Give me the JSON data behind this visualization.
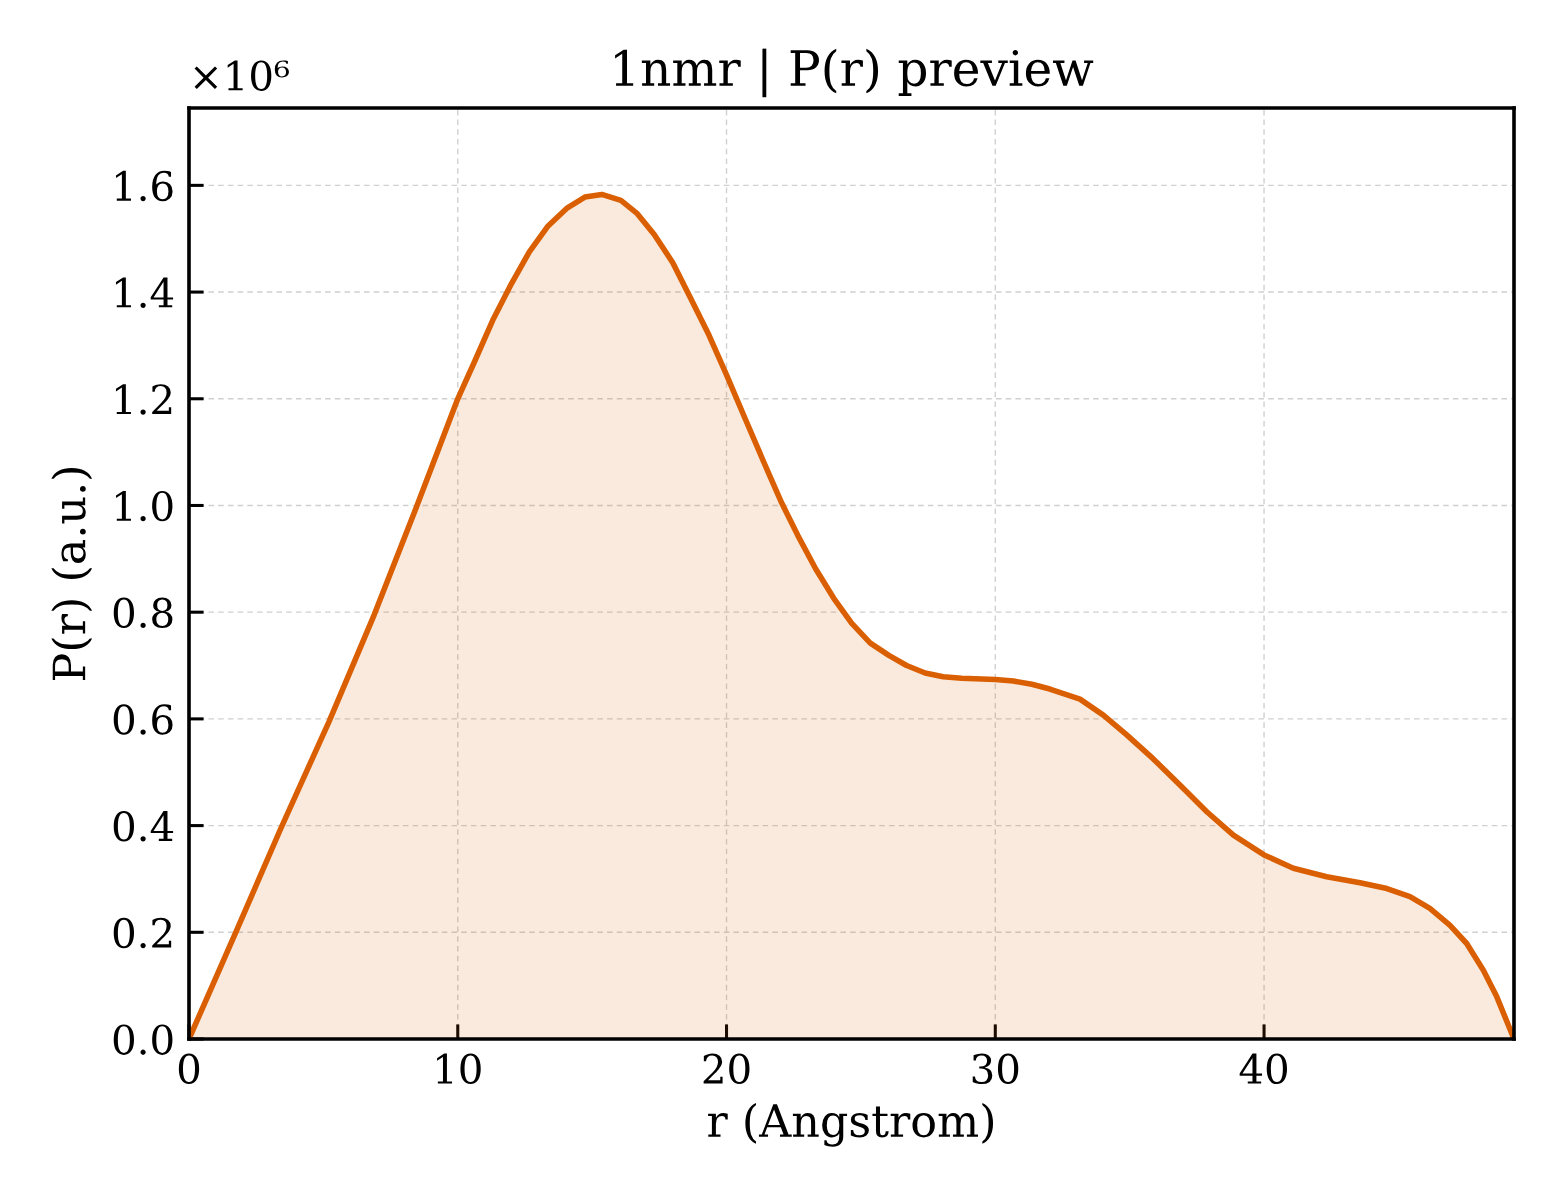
{
  "chart_data": {
    "type": "area",
    "title": "1nmr | P(r) preview",
    "xlabel": "r (Angstrom)",
    "ylabel": "P(r) (a.u.)",
    "annotations": [
      "×10⁶"
    ],
    "color": "#d95f02",
    "x": [
      0,
      1.74,
      3.42,
      5.21,
      6.89,
      8.47,
      10,
      10.61,
      11.3,
      12.0,
      12.67,
      13.36,
      14.08,
      14.73,
      15.36,
      16.07,
      16.68,
      17.31,
      18.0,
      18.66,
      19.35,
      20,
      20.69,
      21.38,
      22.05,
      22.65,
      23.32,
      23.99,
      24.66,
      25.35,
      26.04,
      26.7,
      27.39,
      28.06,
      28.75,
      30,
      30.67,
      31.36,
      32.03,
      33.15,
      34.02,
      34.89,
      35.88,
      36.87,
      37.87,
      38.86,
      40,
      41.09,
      42.33,
      43.57,
      44.57,
      45.43,
      46.17,
      46.92,
      47.54,
      48.16,
      48.66,
      49.3
    ],
    "values": [
      0,
      0.2,
      0.395,
      0.595,
      0.795,
      0.998,
      1.2,
      1.268,
      1.347,
      1.416,
      1.476,
      1.524,
      1.558,
      1.578,
      1.583,
      1.572,
      1.547,
      1.508,
      1.455,
      1.389,
      1.319,
      1.245,
      1.163,
      1.082,
      1.005,
      0.944,
      0.881,
      0.826,
      0.779,
      0.742,
      0.719,
      0.7,
      0.686,
      0.679,
      0.676,
      0.674,
      0.671,
      0.665,
      0.656,
      0.637,
      0.607,
      0.57,
      0.525,
      0.476,
      0.426,
      0.382,
      0.345,
      0.32,
      0.304,
      0.293,
      0.282,
      0.267,
      0.245,
      0.213,
      0.179,
      0.129,
      0.079,
      0
    ],
    "xlim": [
      0,
      49.3
    ],
    "xticks": [
      0,
      10,
      20,
      30,
      40
    ],
    "ylim": [
      0,
      1.745
    ],
    "yticks": [
      {
        "value": 0,
        "label": "0.0"
      },
      0.2,
      0.4,
      0.6,
      0.8,
      {
        "value": 1,
        "label": "1.0"
      },
      1.2,
      1.4,
      1.6
    ],
    "grid": true
  }
}
